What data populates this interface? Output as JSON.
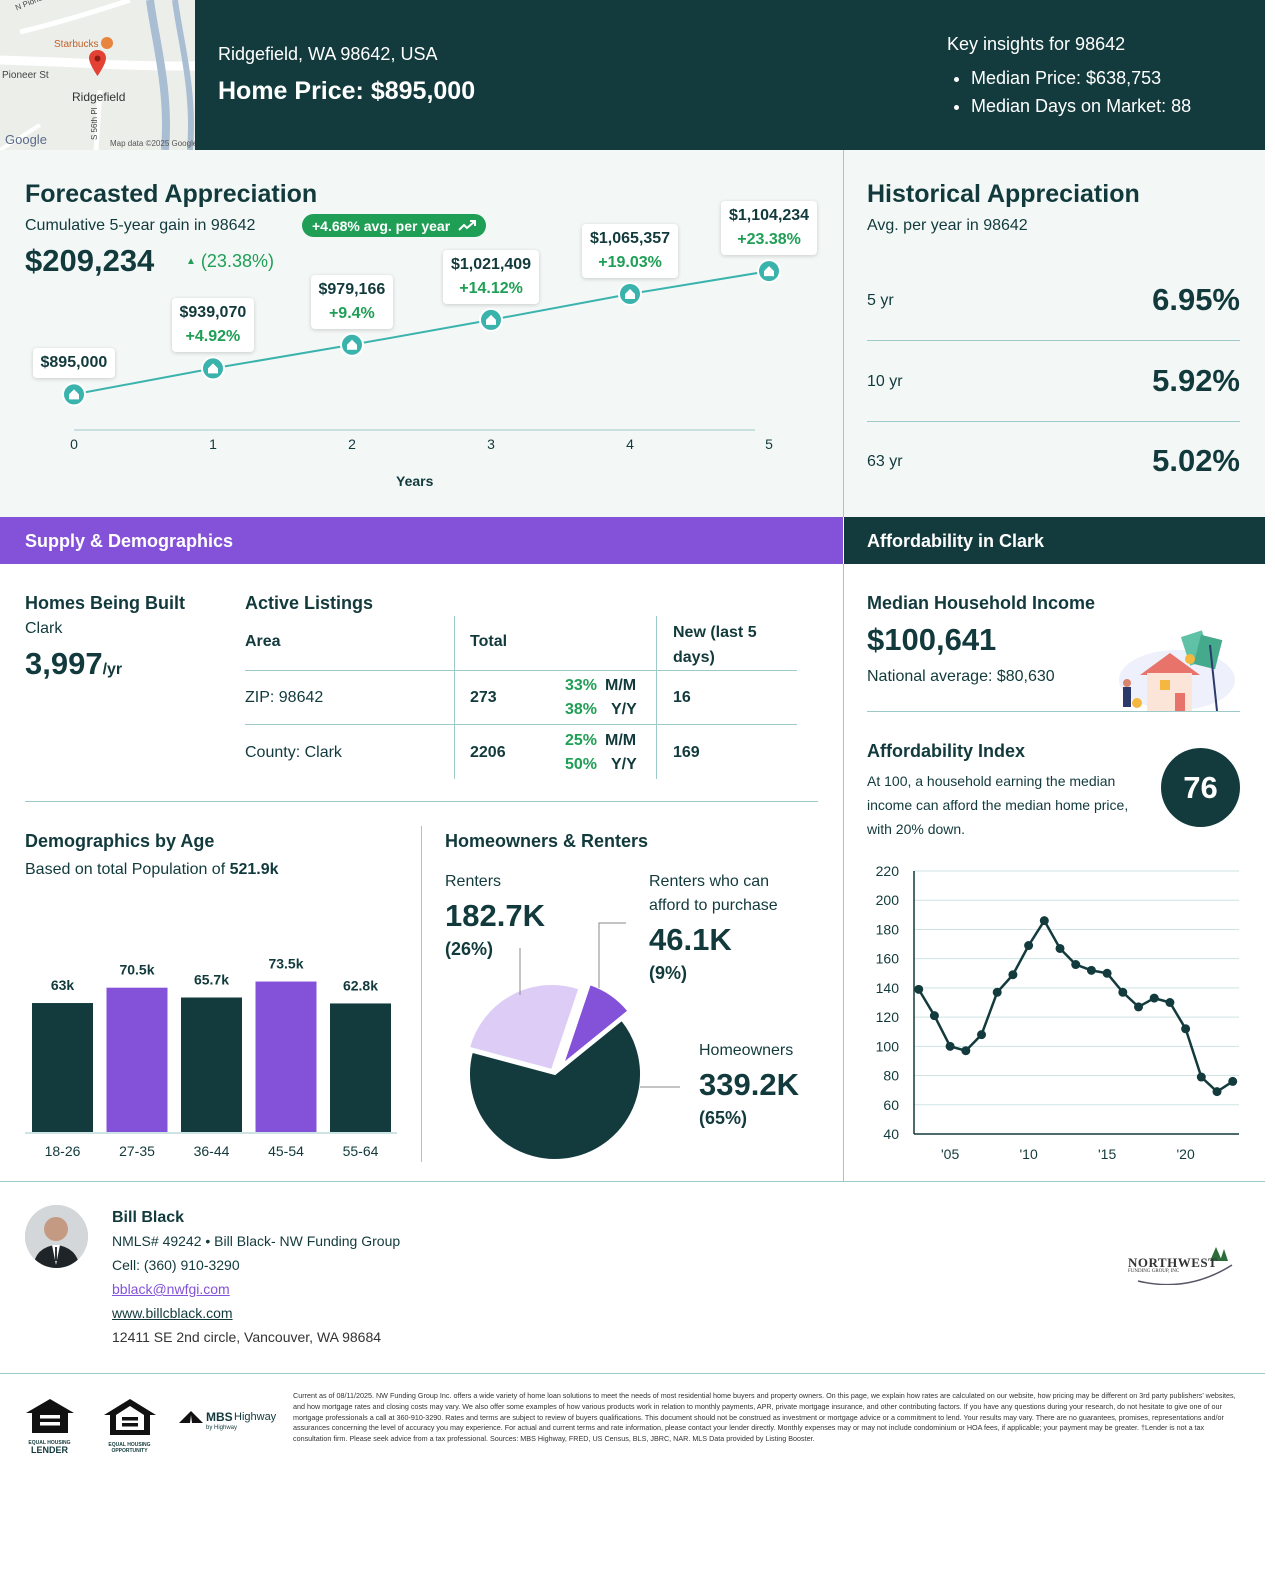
{
  "header": {
    "map": {
      "street_1": "N Pioneer Canyon Dr",
      "street_2": "Pioneer St",
      "street_3": "S 56th Pl",
      "poi": "Starbucks",
      "town": "Ridgefield",
      "logo": "Google",
      "credit": "Map data ©2025 Google"
    },
    "address": "Ridgefield, WA 98642, USA",
    "home_price": "Home Price: $895,000",
    "insights_title": "Key insights for 98642",
    "insights": [
      "Median Price: $638,753",
      "Median Days on Market: 88"
    ]
  },
  "forecast": {
    "title": "Forecasted Appreciation",
    "subtitle": "Cumulative 5-year gain in 98642",
    "badge": "+4.68% avg. per year",
    "gain_amount": "$209,234",
    "gain_pct": "(23.38%)",
    "xlabel": "Years"
  },
  "historical": {
    "title": "Historical Appreciation",
    "subtitle": "Avg. per year in 98642",
    "rows": [
      {
        "label": "5 yr",
        "value": "6.95%"
      },
      {
        "label": "10 yr",
        "value": "5.92%"
      },
      {
        "label": "63 yr",
        "value": "5.02%"
      }
    ]
  },
  "supply": {
    "band_title": "Supply & Demographics",
    "homes_built_title": "Homes Being Built",
    "homes_built_area": "Clark",
    "homes_built_value": "3,997",
    "homes_built_unit": "/yr",
    "listings_title": "Active Listings",
    "table_headers": [
      "Area",
      "Total",
      "New (last 5 days)"
    ],
    "table_rows": [
      {
        "area": "ZIP: 98642",
        "total": "273",
        "mm_pct": "33%",
        "mm": "M/M",
        "yy_pct": "38%",
        "yy": "Y/Y",
        "new": "16"
      },
      {
        "area": "County: Clark",
        "total": "2206",
        "mm_pct": "25%",
        "mm": "M/M",
        "yy_pct": "50%",
        "yy": "Y/Y",
        "new": "169"
      }
    ]
  },
  "demographics": {
    "title": "Demographics by Age",
    "subtitle_prefix": "Based on total Population of ",
    "population": "521.9k"
  },
  "owners": {
    "title": "Homeowners & Renters",
    "renters_label": "Renters",
    "renters_value": "182.7K",
    "renters_pct": "(26%)",
    "afford_label_1": "Renters who can",
    "afford_label_2": "afford to purchase",
    "afford_value": "46.1K",
    "afford_pct": "(9%)",
    "owners_label": "Homeowners",
    "owners_value": "339.2K",
    "owners_pct": "(65%)"
  },
  "affordability": {
    "band_title": "Affordability in Clark",
    "income_title": "Median Household Income",
    "income_value": "$100,641",
    "national": "National average: $80,630",
    "index_title": "Affordability Index",
    "index_desc": "At 100, a household earning the median income can afford the median home price, with 20% down.",
    "index_value": "76"
  },
  "contact": {
    "name": "Bill Black",
    "nmls": "NMLS# 49242 • Bill Black- NW Funding Group",
    "cell": "Cell: (360) 910-3290",
    "email": "bblack@nwfgi.com",
    "website": "www.billcblack.com",
    "address": "12411 SE 2nd circle, Vancouver, WA 98684",
    "company_logo_1": "NORTHWEST",
    "company_logo_2": "FUNDING GROUP, INC"
  },
  "footer": {
    "logo1_a": "EQUAL HOUSING",
    "logo1_b": "LENDER",
    "logo2_a": "EQUAL HOUSING",
    "logo2_b": "OPPORTUNITY",
    "mbs_a": "MBS",
    "mbs_b": "Highway",
    "mbs_c": "by Highway",
    "disclaimer": "Current as of 08/11/2025. NW Funding Group Inc. offers a wide variety of home loan solutions to meet the needs of most residential home buyers and property owners. On this page, we explain how rates are calculated on our website, how pricing may be different on 3rd party publishers' websites, and how mortgage rates and closing costs may vary. We also offer some examples of how various products work in relation to monthly payments, APR, private mortgage insurance, and other contributing factors. If you have any questions during your research, do not hesitate to give one of our mortgage professionals a call at 360-910-3290. Rates and terms are subject to review of buyers qualifications. This document should not be construed as investment or mortgage advice or a commitment to lend. Your results may vary. There are no guarantees, promises, representations and/or assurances concerning the level of accuracy you may experience. For actual and current terms and rate information, please contact your lender directly. Monthly expenses may or may not include condominium or HOA fees, if applicable; your payment may be greater. †Lender is not a tax consultation firm. Please seek advice from a tax professional. Sources: MBS Highway, FRED, US Census, BLS, JBRC, NAR. MLS Data provided by Listing Booster."
  },
  "colors": {
    "dark": "#133b3d",
    "purple": "#8452d8",
    "teal": "#3bb3ad",
    "green": "#1f9e55",
    "lavender": "#ddcdf6"
  },
  "chart_data": [
    {
      "id": "forecast",
      "type": "line",
      "title": "Forecasted Appreciation",
      "xlabel": "Years",
      "x": [
        0,
        1,
        2,
        3,
        4,
        5
      ],
      "values": [
        895000,
        939070,
        979166,
        1021409,
        1065357,
        1104234
      ],
      "labels": [
        "$895,000",
        "$939,070",
        "$979,166",
        "$1,021,409",
        "$1,065,357",
        "$1,104,234"
      ],
      "pct_labels": [
        "",
        "+4.92%",
        "+9.4%",
        "+14.12%",
        "+19.03%",
        "+23.38%"
      ],
      "ylim": [
        860000,
        1140000
      ]
    },
    {
      "id": "age",
      "type": "bar",
      "title": "Demographics by Age",
      "categories": [
        "18-26",
        "27-35",
        "36-44",
        "45-54",
        "55-64"
      ],
      "values": [
        63,
        70.5,
        65.7,
        73.5,
        62.8
      ],
      "labels": [
        "63k",
        "70.5k",
        "65.7k",
        "73.5k",
        "62.8k"
      ],
      "ylim": [
        0,
        85
      ]
    },
    {
      "id": "tenure",
      "type": "pie",
      "title": "Homeowners & Renters",
      "categories": [
        "Renters",
        "Renters who can afford to purchase",
        "Homeowners"
      ],
      "values": [
        26,
        9,
        65
      ]
    },
    {
      "id": "afford",
      "type": "line",
      "title": "Affordability Index",
      "x": [
        2003,
        2004,
        2005,
        2006,
        2007,
        2008,
        2009,
        2010,
        2011,
        2012,
        2013,
        2014,
        2015,
        2016,
        2017,
        2018,
        2019,
        2020,
        2021,
        2022
      ],
      "values": [
        139,
        121,
        100,
        97,
        108,
        137,
        149,
        169,
        186,
        167,
        156,
        152,
        150,
        137,
        127,
        133,
        130,
        112,
        79,
        69
      ],
      "x_ticks": [
        2005,
        2010,
        2015,
        2020
      ],
      "x_tick_labels": [
        "'05",
        "'10",
        "'15",
        "'20"
      ],
      "y_ticks": [
        40,
        60,
        80,
        100,
        120,
        140,
        160,
        180,
        200,
        220
      ],
      "ylim": [
        40,
        220
      ],
      "last_x": 2023,
      "last_value": 76
    }
  ]
}
